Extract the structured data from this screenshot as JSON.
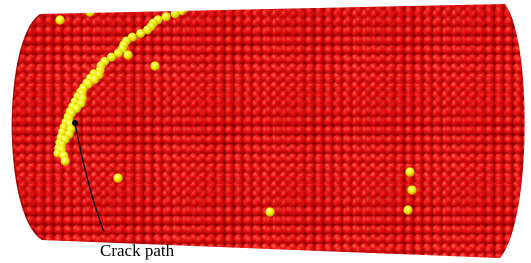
{
  "annotation": {
    "label": "Crack path"
  }
}
